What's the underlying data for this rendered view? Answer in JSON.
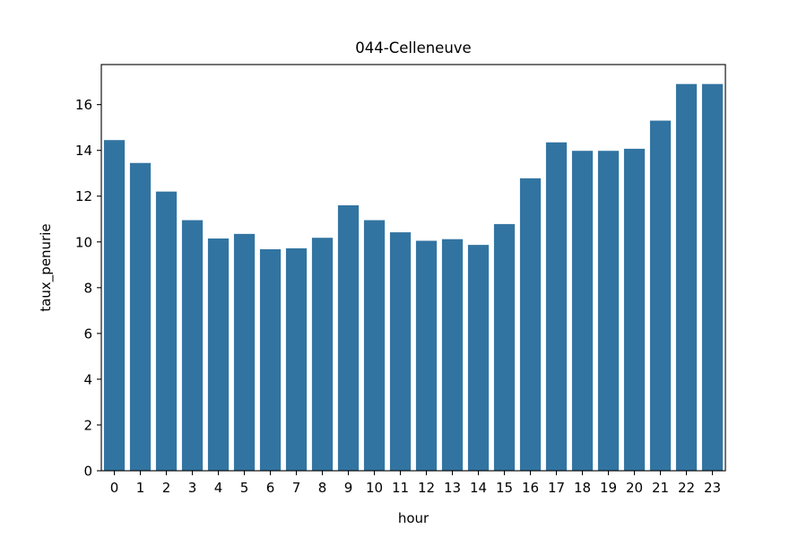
{
  "chart_data": {
    "type": "bar",
    "title": "044-Celleneuve",
    "xlabel": "hour",
    "ylabel": "taux_penurie",
    "categories": [
      "0",
      "1",
      "2",
      "3",
      "4",
      "5",
      "6",
      "7",
      "8",
      "9",
      "10",
      "11",
      "12",
      "13",
      "14",
      "15",
      "16",
      "17",
      "18",
      "19",
      "20",
      "21",
      "22",
      "23"
    ],
    "values": [
      14.45,
      13.45,
      12.2,
      10.95,
      10.15,
      10.35,
      9.68,
      9.72,
      10.18,
      11.6,
      10.95,
      10.42,
      10.05,
      10.12,
      9.87,
      10.78,
      12.78,
      14.35,
      13.98,
      13.98,
      14.07,
      15.3,
      16.9,
      16.9
    ],
    "ylim": [
      0,
      17.75
    ],
    "yticks": [
      0,
      2,
      4,
      6,
      8,
      10,
      12,
      14,
      16
    ],
    "grid": false,
    "bar_color": "#3274a1"
  }
}
